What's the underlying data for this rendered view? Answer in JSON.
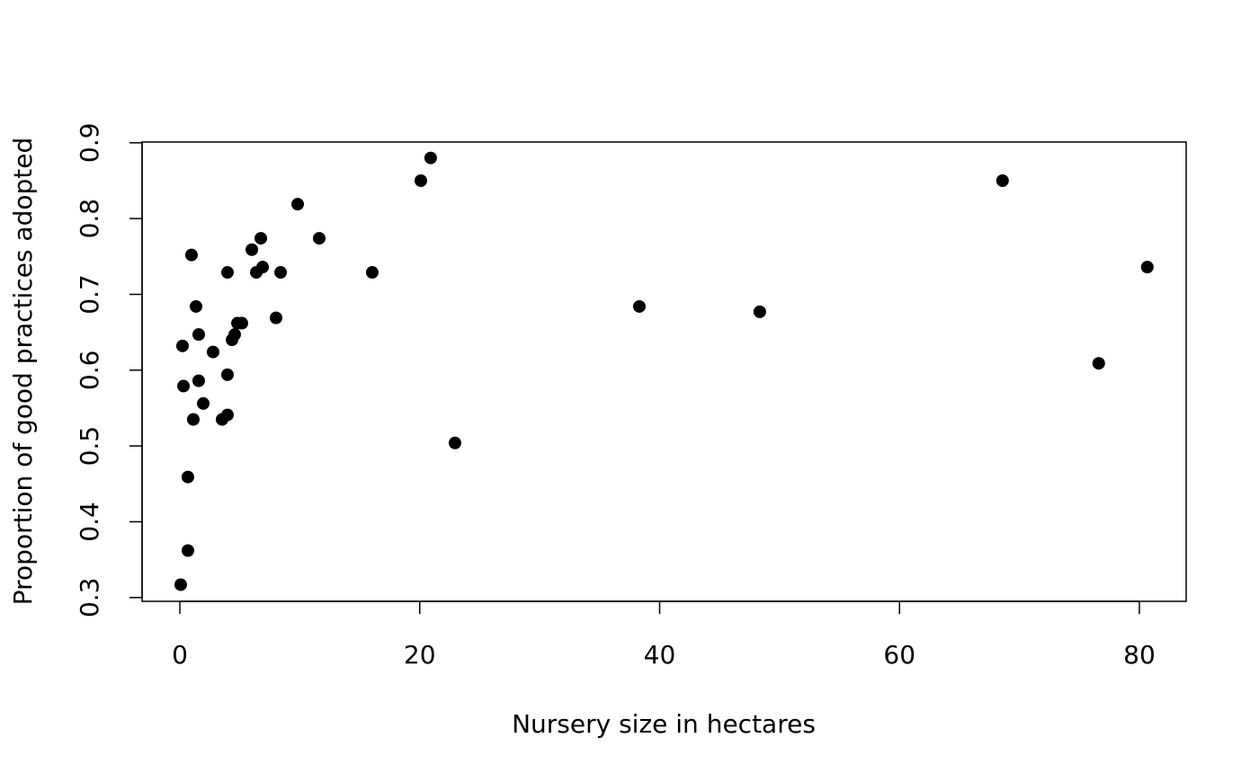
{
  "chart_data": {
    "type": "scatter",
    "x_label": "Nursery size in hectares",
    "y_label": "Proportion of good practices adopted",
    "color": "#000000",
    "x": [
      0.07,
      0.67,
      0.67,
      1.12,
      0.3,
      0.22,
      0.97,
      1.35,
      1.57,
      1.57,
      1.95,
      2.77,
      3.52,
      3.97,
      3.97,
      3.97,
      4.35,
      4.57,
      4.8,
      5.17,
      6.0,
      6.37,
      6.75,
      6.9,
      8.02,
      8.4,
      9.82,
      11.62,
      16.04,
      20.09,
      20.91,
      22.94,
      38.31,
      48.35,
      68.59,
      76.61,
      80.66
    ],
    "y": [
      0.317,
      0.362,
      0.459,
      0.535,
      0.579,
      0.632,
      0.752,
      0.684,
      0.647,
      0.586,
      0.556,
      0.624,
      0.535,
      0.541,
      0.594,
      0.729,
      0.64,
      0.647,
      0.662,
      0.662,
      0.759,
      0.729,
      0.774,
      0.736,
      0.669,
      0.729,
      0.819,
      0.774,
      0.729,
      0.85,
      0.88,
      0.504,
      0.684,
      0.677,
      0.85,
      0.609,
      0.736
    ],
    "xlim": [
      -3.15,
      83.9
    ],
    "ylim": [
      0.295,
      0.901
    ],
    "xticks": [
      0,
      20,
      40,
      60,
      80
    ],
    "yticks": [
      0.3,
      0.4,
      0.5,
      0.6,
      0.7,
      0.8,
      0.9
    ]
  }
}
